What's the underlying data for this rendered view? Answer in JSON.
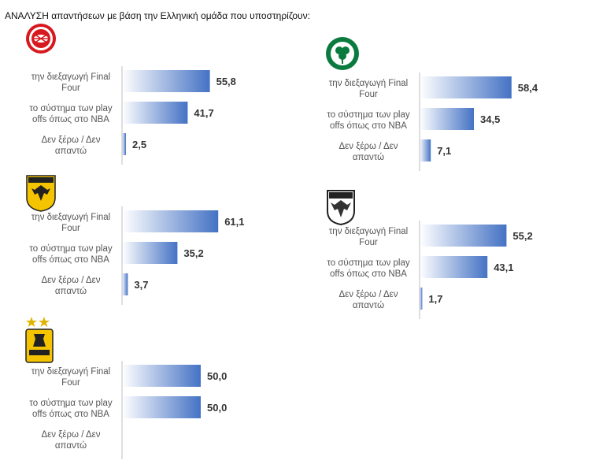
{
  "title": "ΑΝΑΛΥΣΗ απαντήσεων με βάση την Ελληνική ομάδα που υποστηρίζουν:",
  "colors": {
    "bar_dark": "#4472c4",
    "bar_light": "#ffffff",
    "axis": "#bfbfbf"
  },
  "chart_data": [
    {
      "type": "bar",
      "team_logo": "olympiacos-logo",
      "categories": [
        "την διεξαγωγή  Final Four",
        "το σύστημα των play offs όπως στο NBA",
        "Δεν ξέρω / Δεν απαντώ"
      ],
      "values": [
        55.8,
        41.7,
        2.5
      ],
      "value_labels": [
        "55,8",
        "41,7",
        "2,5"
      ],
      "xlim": [
        0,
        100
      ]
    },
    {
      "type": "bar",
      "team_logo": "panathinaikos-logo",
      "categories": [
        "την διεξαγωγή  Final Four",
        "το σύστημα των play offs όπως στο NBA",
        "Δεν ξέρω / Δεν απαντώ"
      ],
      "values": [
        58.4,
        34.5,
        7.1
      ],
      "value_labels": [
        "58,4",
        "34,5",
        "7,1"
      ],
      "xlim": [
        0,
        100
      ]
    },
    {
      "type": "bar",
      "team_logo": "aek-logo",
      "categories": [
        "την διεξαγωγή  Final Four",
        "το σύστημα των play offs όπως στο NBA",
        "Δεν ξέρω / Δεν απαντώ"
      ],
      "values": [
        61.1,
        35.2,
        3.7
      ],
      "value_labels": [
        "61,1",
        "35,2",
        "3,7"
      ],
      "xlim": [
        0,
        100
      ]
    },
    {
      "type": "bar",
      "team_logo": "paok-logo",
      "categories": [
        "την διεξαγωγή  Final Four",
        "το σύστημα των play offs όπως στο NBA",
        "Δεν ξέρω / Δεν απαντώ"
      ],
      "values": [
        55.2,
        43.1,
        1.7
      ],
      "value_labels": [
        "55,2",
        "43,1",
        "1,7"
      ],
      "xlim": [
        0,
        100
      ]
    },
    {
      "type": "bar",
      "team_logo": "aris-logo",
      "categories": [
        "την διεξαγωγή  Final Four",
        "το σύστημα των play offs όπως στο NBA",
        "Δεν ξέρω / Δεν απαντώ"
      ],
      "values": [
        50.0,
        50.0,
        0
      ],
      "value_labels": [
        "50,0",
        "50,0",
        ""
      ],
      "xlim": [
        0,
        100
      ]
    }
  ]
}
